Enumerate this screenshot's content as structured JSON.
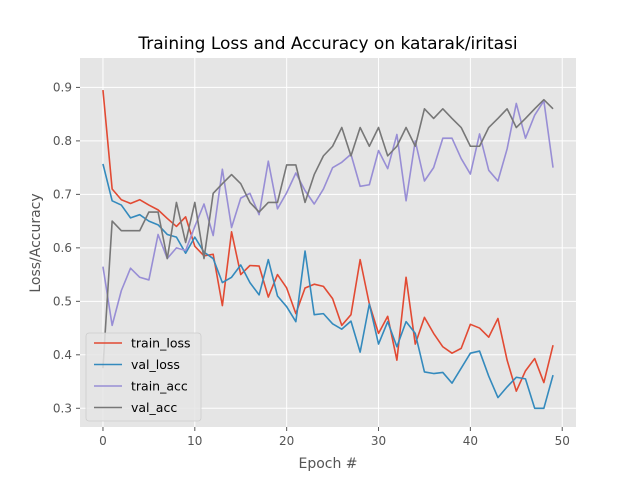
{
  "chart_data": {
    "type": "line",
    "title": "Training Loss and Accuracy on katarak/iritasi",
    "xlabel": "Epoch #",
    "ylabel": "Loss/Accuracy",
    "xlim": [
      -2.5,
      51.5
    ],
    "ylim": [
      0.265,
      0.955
    ],
    "x_ticks": [
      0,
      10,
      20,
      30,
      40,
      50
    ],
    "y_ticks": [
      0.3,
      0.4,
      0.5,
      0.6,
      0.7,
      0.8,
      0.9
    ],
    "x_tick_labels": [
      "0",
      "10",
      "20",
      "30",
      "40",
      "50"
    ],
    "y_tick_labels": [
      "0.3",
      "0.4",
      "0.5",
      "0.6",
      "0.7",
      "0.8",
      "0.9"
    ],
    "grid": true,
    "legend_position": "lower left",
    "x": [
      0,
      1,
      2,
      3,
      4,
      5,
      6,
      7,
      8,
      9,
      10,
      11,
      12,
      13,
      14,
      15,
      16,
      17,
      18,
      19,
      20,
      21,
      22,
      23,
      24,
      25,
      26,
      27,
      28,
      29,
      30,
      31,
      32,
      33,
      34,
      35,
      36,
      37,
      38,
      39,
      40,
      41,
      42,
      43,
      44,
      45,
      46,
      47,
      48,
      49
    ],
    "series": [
      {
        "name": "train_loss",
        "color": "#E24A33",
        "values": [
          0.895,
          0.71,
          0.69,
          0.683,
          0.69,
          0.68,
          0.671,
          0.655,
          0.64,
          0.658,
          0.603,
          0.585,
          0.588,
          0.492,
          0.63,
          0.55,
          0.567,
          0.566,
          0.508,
          0.55,
          0.525,
          0.477,
          0.525,
          0.532,
          0.528,
          0.505,
          0.455,
          0.475,
          0.578,
          0.495,
          0.44,
          0.472,
          0.39,
          0.545,
          0.42,
          0.47,
          0.44,
          0.415,
          0.403,
          0.412,
          0.457,
          0.45,
          0.433,
          0.468,
          0.39,
          0.332,
          0.37,
          0.393,
          0.348,
          0.418
        ]
      },
      {
        "name": "val_loss",
        "color": "#348ABD",
        "values": [
          0.757,
          0.688,
          0.68,
          0.656,
          0.662,
          0.65,
          0.643,
          0.625,
          0.62,
          0.59,
          0.62,
          0.592,
          0.58,
          0.535,
          0.545,
          0.568,
          0.535,
          0.512,
          0.578,
          0.51,
          0.49,
          0.462,
          0.594,
          0.475,
          0.477,
          0.458,
          0.448,
          0.463,
          0.405,
          0.495,
          0.42,
          0.462,
          0.415,
          0.462,
          0.44,
          0.368,
          0.365,
          0.367,
          0.347,
          0.375,
          0.403,
          0.407,
          0.36,
          0.32,
          0.34,
          0.358,
          0.355,
          0.3,
          0.3,
          0.362
        ]
      },
      {
        "name": "train_acc",
        "color": "#988ED5",
        "values": [
          0.565,
          0.455,
          0.52,
          0.562,
          0.545,
          0.54,
          0.625,
          0.58,
          0.6,
          0.595,
          0.64,
          0.682,
          0.623,
          0.747,
          0.638,
          0.693,
          0.702,
          0.662,
          0.762,
          0.673,
          0.703,
          0.74,
          0.707,
          0.682,
          0.71,
          0.75,
          0.76,
          0.775,
          0.715,
          0.718,
          0.782,
          0.748,
          0.812,
          0.688,
          0.8,
          0.725,
          0.75,
          0.805,
          0.805,
          0.767,
          0.738,
          0.813,
          0.745,
          0.725,
          0.785,
          0.87,
          0.805,
          0.848,
          0.875,
          0.75
        ]
      },
      {
        "name": "val_acc",
        "color": "#777777",
        "values": [
          0.375,
          0.65,
          0.632,
          0.632,
          0.632,
          0.667,
          0.667,
          0.58,
          0.685,
          0.61,
          0.685,
          0.58,
          0.702,
          0.72,
          0.737,
          0.72,
          0.685,
          0.667,
          0.685,
          0.685,
          0.755,
          0.755,
          0.685,
          0.737,
          0.772,
          0.79,
          0.825,
          0.772,
          0.825,
          0.79,
          0.825,
          0.772,
          0.79,
          0.825,
          0.79,
          0.86,
          0.842,
          0.86,
          0.842,
          0.825,
          0.79,
          0.79,
          0.825,
          0.842,
          0.86,
          0.825,
          0.842,
          0.86,
          0.877,
          0.86
        ]
      }
    ]
  }
}
